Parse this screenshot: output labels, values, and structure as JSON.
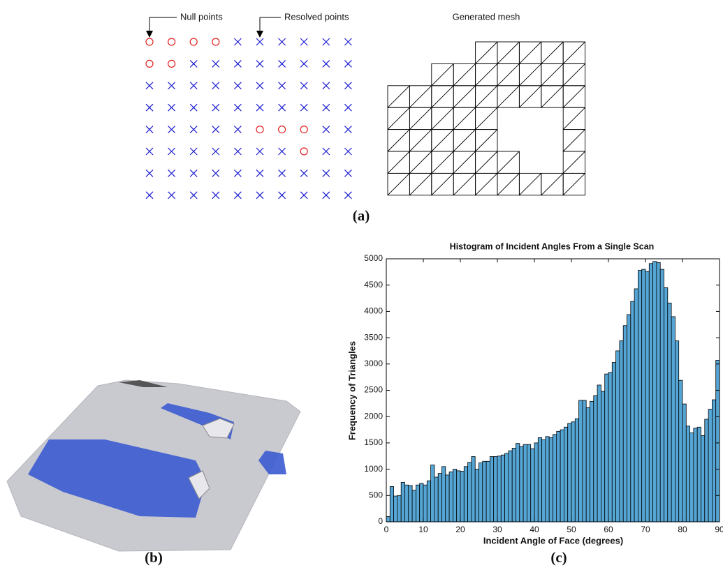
{
  "figure": {
    "panel_a": {
      "null_label": "Null points",
      "resolved_label": "Resolved points",
      "mesh_title": "Generated mesh",
      "caption": "(a)"
    },
    "panel_b": {
      "caption": "(b)"
    },
    "panel_c": {
      "caption": "(c)"
    }
  },
  "chart_data": {
    "type": "histogram",
    "title": "Histogram of Incident Angles From a Single Scan",
    "xlabel": "Incident Angle of Face (degrees)",
    "ylabel": "Frequency of Triangles",
    "bins": [
      0,
      1,
      2,
      3,
      4,
      5,
      6,
      7,
      8,
      9,
      10,
      11,
      12,
      13,
      14,
      15,
      16,
      17,
      18,
      19,
      20,
      21,
      22,
      23,
      24,
      25,
      26,
      27,
      28,
      29,
      30,
      31,
      32,
      33,
      34,
      35,
      36,
      37,
      38,
      39,
      40,
      41,
      42,
      43,
      44,
      45,
      46,
      47,
      48,
      49,
      50,
      51,
      52,
      53,
      54,
      55,
      56,
      57,
      58,
      59,
      60,
      61,
      62,
      63,
      64,
      65,
      66,
      67,
      68,
      69,
      70,
      71,
      72,
      73,
      74,
      75,
      76,
      77,
      78,
      79,
      80,
      81,
      82,
      83,
      84,
      85,
      86,
      87,
      88,
      89,
      90
    ],
    "values": [
      100,
      670,
      490,
      500,
      750,
      700,
      690,
      600,
      700,
      730,
      700,
      780,
      1080,
      850,
      920,
      1050,
      890,
      950,
      1000,
      970,
      960,
      1050,
      1130,
      1240,
      1000,
      1120,
      1150,
      1150,
      1240,
      1240,
      1250,
      1270,
      1300,
      1350,
      1400,
      1490,
      1430,
      1470,
      1470,
      1390,
      1500,
      1600,
      1560,
      1620,
      1600,
      1660,
      1720,
      1750,
      1800,
      1870,
      1900,
      1960,
      2310,
      2310,
      2170,
      2290,
      2400,
      2600,
      2480,
      2810,
      2840,
      3030,
      3250,
      3440,
      3730,
      3940,
      4190,
      4430,
      4780,
      4800,
      4760,
      4910,
      4950,
      4930,
      4800,
      4450,
      4160,
      3900,
      3440,
      2690,
      2240,
      1820,
      1690,
      1780,
      1800,
      1640,
      1950,
      2140,
      2320,
      3070
    ],
    "color": "#56a6d5",
    "xlim": [
      0,
      90
    ],
    "ylim": [
      0,
      5000
    ],
    "xticks": [
      0,
      10,
      20,
      30,
      40,
      50,
      60,
      70,
      80,
      90
    ],
    "yticks": [
      0,
      500,
      1000,
      1500,
      2000,
      2500,
      3000,
      3500,
      4000,
      4500,
      5000
    ]
  }
}
